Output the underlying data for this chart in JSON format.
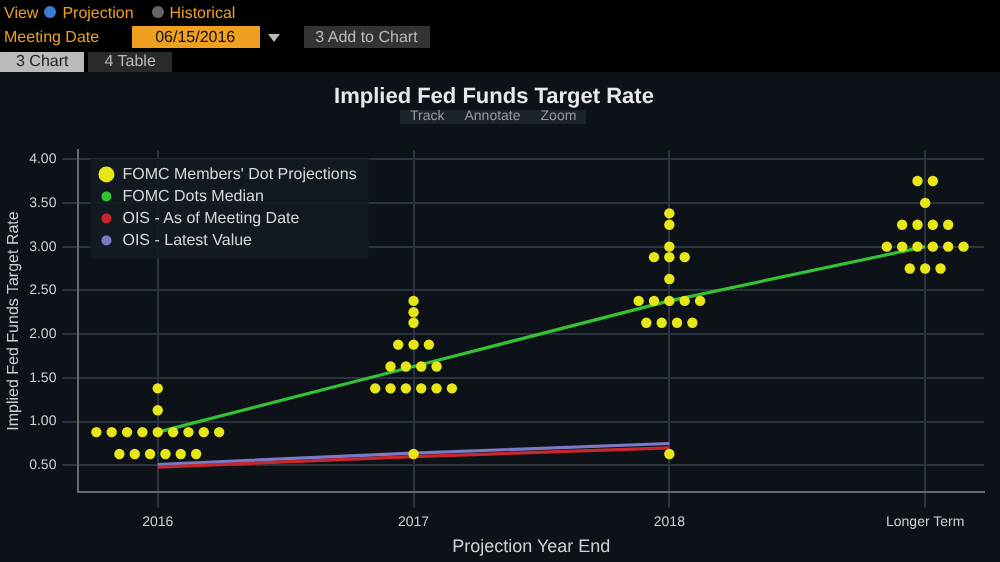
{
  "chart_data": {
    "type": "scatter",
    "title": "Implied Fed Funds Target Rate",
    "xlabel": "Projection Year End",
    "ylabel": "Implied Fed Funds Target Rate",
    "x": [
      2016,
      2017,
      2018,
      2019
    ],
    "xlim": [
      2015.69,
      2019.23
    ],
    "xticks": [
      2016,
      2017,
      2018,
      {
        "value": 2019,
        "label": "Longer Term"
      }
    ],
    "ylim": [
      0.2,
      4.1
    ],
    "yticks": [
      {
        "value": 0.5,
        "label": "0.50"
      },
      {
        "value": 1,
        "label": "1.00"
      },
      {
        "value": 1.5,
        "label": "1.50"
      },
      {
        "value": 2,
        "label": "2.00"
      },
      {
        "value": 2.5,
        "label": "2.50"
      },
      {
        "value": 3,
        "label": "3.00"
      },
      {
        "value": 3.5,
        "label": "3.50"
      },
      {
        "value": 4,
        "label": "4.00"
      }
    ],
    "grid": true,
    "legend": "top left",
    "annotations": [
      "View",
      "Projection",
      "Historical",
      "Meeting Date",
      "06/15/2016",
      "3 Add to Chart",
      "3 Chart",
      "4 Table",
      "Track",
      "Annotate",
      "Zoom"
    ],
    "series": [
      {
        "name": "FOMC Members' Dot Projections",
        "marker": "circle",
        "color": "#e6e619",
        "x": [
          2015.85,
          2015.91,
          2015.97,
          2016.03,
          2016.09,
          2016.15,
          2015.76,
          2015.82,
          2015.88,
          2015.94,
          2016,
          2016.06,
          2016.12,
          2016.18,
          2016.24,
          2016,
          2016,
          2017,
          2016.85,
          2016.91,
          2016.97,
          2017.03,
          2017.09,
          2017.15,
          2016.91,
          2016.97,
          2017.03,
          2017.09,
          2016.94,
          2017,
          2017.06,
          2017,
          2017,
          2017,
          2018,
          2017.91,
          2017.97,
          2018.03,
          2018.09,
          2017.88,
          2017.94,
          2018,
          2018.06,
          2018.12,
          2018,
          2017.94,
          2018,
          2018.06,
          2018,
          2018,
          2018,
          2018.94,
          2019,
          2019.06,
          2018.85,
          2018.91,
          2018.97,
          2019.03,
          2019.09,
          2019.15,
          2018.91,
          2018.97,
          2019.03,
          2019.09,
          2019,
          2018.97,
          2019.03
        ],
        "values": [
          0.63,
          0.63,
          0.63,
          0.63,
          0.63,
          0.63,
          0.88,
          0.88,
          0.88,
          0.88,
          0.88,
          0.88,
          0.88,
          0.88,
          0.88,
          1.13,
          1.38,
          0.63,
          1.38,
          1.38,
          1.38,
          1.38,
          1.38,
          1.38,
          1.63,
          1.63,
          1.63,
          1.63,
          1.88,
          1.88,
          1.88,
          2.13,
          2.25,
          2.38,
          0.63,
          2.13,
          2.13,
          2.13,
          2.13,
          2.38,
          2.38,
          2.38,
          2.38,
          2.38,
          2.63,
          2.88,
          2.88,
          2.88,
          3.0,
          3.25,
          3.38,
          2.75,
          2.75,
          2.75,
          3.0,
          3.0,
          3.0,
          3.0,
          3.0,
          3.0,
          3.25,
          3.25,
          3.25,
          3.25,
          3.5,
          3.75,
          3.75
        ]
      },
      {
        "name": "FOMC Dots Median",
        "type": "line",
        "marker": "none",
        "color": "#35c135",
        "values": [
          0.88,
          1.63,
          2.38,
          3.0
        ]
      },
      {
        "name": "OIS - As of Meeting Date",
        "type": "line",
        "marker": "none",
        "color": "#c8282d",
        "values": [
          0.48,
          0.6,
          0.7,
          null
        ]
      },
      {
        "name": "OIS - Latest Value",
        "type": "line",
        "marker": "none",
        "color": "#7a7ac8",
        "values": [
          0.51,
          0.64,
          0.75,
          null
        ]
      }
    ]
  }
}
